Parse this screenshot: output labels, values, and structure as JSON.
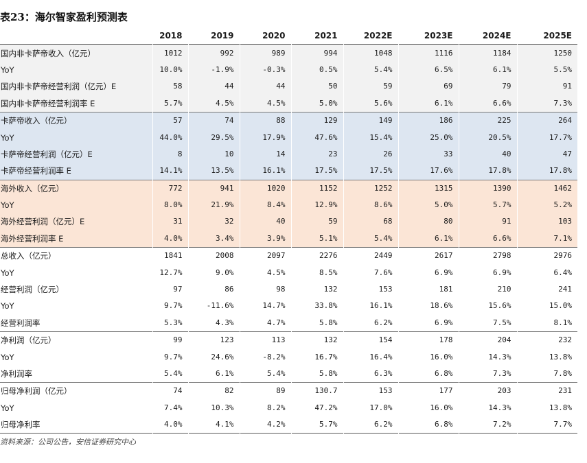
{
  "title": "表23：海尔智家盈利预测表",
  "columns": [
    "",
    "2018",
    "2019",
    "2020",
    "2021",
    "2022E",
    "2023E",
    "2024E",
    "2025E"
  ],
  "rows": [
    {
      "label": "国内非卡萨帝收入（亿元）",
      "values": [
        "1012",
        "992",
        "989",
        "994",
        "1048",
        "1116",
        "1184",
        "1250"
      ],
      "bg": "gray",
      "start": true
    },
    {
      "label": "YoY",
      "values": [
        "10.0%",
        "-1.9%",
        "-0.3%",
        "0.5%",
        "5.4%",
        "6.5%",
        "6.1%",
        "5.5%"
      ],
      "bg": "gray"
    },
    {
      "label": "国内非卡萨帝经营利润（亿元）E",
      "values": [
        "58",
        "44",
        "44",
        "50",
        "59",
        "69",
        "79",
        "91"
      ],
      "bg": "gray"
    },
    {
      "label": "国内非卡萨帝经营利润率 E",
      "values": [
        "5.7%",
        "4.5%",
        "4.5%",
        "5.0%",
        "5.6%",
        "6.1%",
        "6.6%",
        "7.3%"
      ],
      "bg": "gray"
    },
    {
      "label": "卡萨帝收入（亿元）",
      "values": [
        "57",
        "74",
        "88",
        "129",
        "149",
        "186",
        "225",
        "264"
      ],
      "bg": "blue",
      "start": true
    },
    {
      "label": "YoY",
      "values": [
        "44.0%",
        "29.5%",
        "17.9%",
        "47.6%",
        "15.4%",
        "25.0%",
        "20.5%",
        "17.7%"
      ],
      "bg": "blue"
    },
    {
      "label": "卡萨帝经营利润（亿元）E",
      "values": [
        "8",
        "10",
        "14",
        "23",
        "26",
        "33",
        "40",
        "47"
      ],
      "bg": "blue"
    },
    {
      "label": "卡萨帝经营利润率 E",
      "values": [
        "14.1%",
        "13.5%",
        "16.1%",
        "17.5%",
        "17.5%",
        "17.6%",
        "17.8%",
        "17.8%"
      ],
      "bg": "blue"
    },
    {
      "label": "海外收入（亿元）",
      "values": [
        "772",
        "941",
        "1020",
        "1152",
        "1252",
        "1315",
        "1390",
        "1462"
      ],
      "bg": "orange",
      "start": true
    },
    {
      "label": "YoY",
      "values": [
        "8.0%",
        "21.9%",
        "8.4%",
        "12.9%",
        "8.6%",
        "5.0%",
        "5.7%",
        "5.2%"
      ],
      "bg": "orange"
    },
    {
      "label": "海外经营利润（亿元）E",
      "values": [
        "31",
        "32",
        "40",
        "59",
        "68",
        "80",
        "91",
        "103"
      ],
      "bg": "orange"
    },
    {
      "label": "海外经营利润率 E",
      "values": [
        "4.0%",
        "3.4%",
        "3.9%",
        "5.1%",
        "5.4%",
        "6.1%",
        "6.6%",
        "7.1%"
      ],
      "bg": "orange"
    },
    {
      "label": "总收入（亿元）",
      "values": [
        "1841",
        "2008",
        "2097",
        "2276",
        "2449",
        "2617",
        "2798",
        "2976"
      ],
      "bg": "",
      "start": "strong"
    },
    {
      "label": "YoY",
      "values": [
        "12.7%",
        "9.0%",
        "4.5%",
        "8.5%",
        "7.6%",
        "6.9%",
        "6.9%",
        "6.4%"
      ],
      "bg": ""
    },
    {
      "label": "经营利润（亿元）",
      "values": [
        "97",
        "86",
        "98",
        "132",
        "153",
        "181",
        "210",
        "241"
      ],
      "bg": ""
    },
    {
      "label": "YoY",
      "values": [
        "9.7%",
        "-11.6%",
        "14.7%",
        "33.8%",
        "16.1%",
        "18.6%",
        "15.6%",
        "15.0%"
      ],
      "bg": ""
    },
    {
      "label": "经营利润率",
      "values": [
        "5.3%",
        "4.3%",
        "4.7%",
        "5.8%",
        "6.2%",
        "6.9%",
        "7.5%",
        "8.1%"
      ],
      "bg": ""
    },
    {
      "label": "净利润（亿元）",
      "values": [
        "99",
        "123",
        "113",
        "132",
        "154",
        "178",
        "204",
        "232"
      ],
      "bg": "",
      "start": true
    },
    {
      "label": "YoY",
      "values": [
        "9.7%",
        "24.6%",
        "-8.2%",
        "16.7%",
        "16.4%",
        "16.0%",
        "14.3%",
        "13.8%"
      ],
      "bg": ""
    },
    {
      "label": "净利润率",
      "values": [
        "5.4%",
        "6.1%",
        "5.4%",
        "5.8%",
        "6.3%",
        "6.8%",
        "7.3%",
        "7.8%"
      ],
      "bg": ""
    },
    {
      "label": "归母净利润（亿元）",
      "values": [
        "74",
        "82",
        "89",
        "130.7",
        "153",
        "177",
        "203",
        "231"
      ],
      "bg": "",
      "start": true
    },
    {
      "label": "YoY",
      "values": [
        "7.4%",
        "10.3%",
        "8.2%",
        "47.2%",
        "17.0%",
        "16.0%",
        "14.3%",
        "13.8%"
      ],
      "bg": ""
    },
    {
      "label": "归母净利率",
      "values": [
        "4.0%",
        "4.1%",
        "4.2%",
        "5.7%",
        "6.2%",
        "6.8%",
        "7.2%",
        "7.7%"
      ],
      "bg": ""
    }
  ],
  "source": "资料来源：公司公告，安信证券研究中心",
  "colors": {
    "gray": "#f2f2f2",
    "blue": "#dde6f1",
    "orange": "#fbe5d6"
  }
}
